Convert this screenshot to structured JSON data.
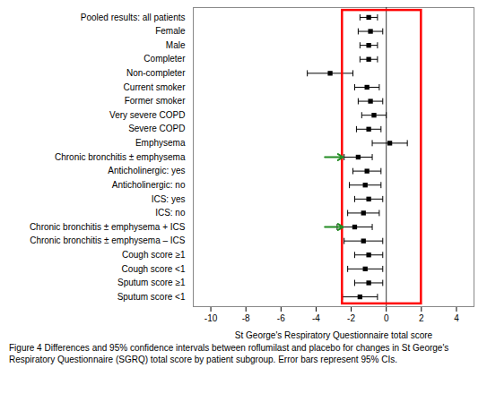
{
  "chart_data": {
    "type": "forest",
    "categories": [
      "Pooled results: all patients",
      "Female",
      "Male",
      "Completer",
      "Non-completer",
      "Current smoker",
      "Former smoker",
      "Very severe COPD",
      "Severe COPD",
      "Emphysema",
      "Chronic bronchitis ± emphysema",
      "Anticholinergic: yes",
      "Anticholinergic: no",
      "ICS: yes",
      "ICS: no",
      "Chronic bronchitis ± emphysema + ICS",
      "Chronic bronchitis ± emphysema – ICS",
      "Cough score ≥1",
      "Cough score <1",
      "Sputum score ≥1",
      "Sputum score <1"
    ],
    "values": [
      -1.0,
      -0.9,
      -1.0,
      -1.0,
      -3.2,
      -1.1,
      -0.9,
      -0.7,
      -1.0,
      0.2,
      -1.6,
      -1.1,
      -1.2,
      -1.0,
      -1.3,
      -1.8,
      -1.3,
      -1.0,
      -1.2,
      -1.0,
      -1.5
    ],
    "ci_lower": [
      -1.5,
      -1.6,
      -1.5,
      -1.5,
      -4.5,
      -1.8,
      -1.6,
      -1.4,
      -1.7,
      -0.8,
      -2.4,
      -1.9,
      -2.1,
      -1.8,
      -2.2,
      -2.8,
      -2.4,
      -1.8,
      -2.2,
      -1.8,
      -2.5
    ],
    "ci_upper": [
      -0.5,
      -0.2,
      -0.5,
      -0.5,
      -1.9,
      -0.4,
      -0.2,
      0.0,
      -0.3,
      1.2,
      -0.8,
      -0.3,
      -0.3,
      -0.2,
      -0.4,
      -0.8,
      -0.2,
      -0.2,
      -0.2,
      -0.2,
      -0.5
    ],
    "color": "black",
    "marker": "square",
    "xlabel": "St George's Respiratory Questionnaire total score",
    "xlim": [
      -11,
      5
    ],
    "xticks": [
      -10,
      -8,
      -6,
      -4,
      -2,
      0,
      2,
      4
    ],
    "grid": false,
    "reference_line": 0,
    "highlight_box": {
      "x": [
        -2.5,
        2.0
      ],
      "color": "red"
    },
    "arrows": {
      "color": "#228B22",
      "items": [
        {
          "category": "Chronic bronchitis ± emphysema",
          "x_from": -3.5,
          "x_to": -2.45
        },
        {
          "category": "Chronic bronchitis ± emphysema + ICS",
          "x_from": -3.5,
          "x_to": -2.45
        }
      ]
    },
    "caption": "Figure 4 Differences and 95% confidence intervals between roflumilast and placebo for changes in St George's Respiratory Questionnaire (SGRQ) total score by patient subgroup. Error bars represent 95% CIs."
  }
}
